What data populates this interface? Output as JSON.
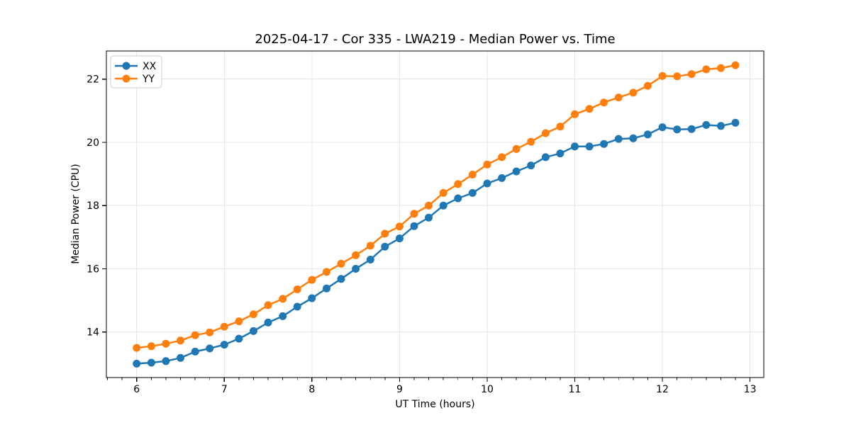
{
  "figure": {
    "kind": "matplotlib-line-chart"
  },
  "chart_data": {
    "type": "line",
    "title": "2025-04-17 - Cor 335 - LWA219 - Median Power vs. Time",
    "xlabel": "UT Time (hours)",
    "ylabel": "Median Power (CPU)",
    "x": [
      6.0,
      6.167,
      6.333,
      6.5,
      6.667,
      6.833,
      7.0,
      7.167,
      7.333,
      7.5,
      7.667,
      7.833,
      8.0,
      8.167,
      8.333,
      8.5,
      8.667,
      8.833,
      9.0,
      9.167,
      9.333,
      9.5,
      9.667,
      9.833,
      10.0,
      10.167,
      10.333,
      10.5,
      10.667,
      10.833,
      11.0,
      11.167,
      11.333,
      11.5,
      11.667,
      11.833,
      12.0,
      12.167,
      12.333,
      12.5,
      12.667,
      12.833
    ],
    "series": [
      {
        "name": "XX",
        "color": "#1f77b4",
        "values": [
          13.0,
          13.03,
          13.08,
          13.18,
          13.38,
          13.48,
          13.6,
          13.79,
          14.03,
          14.3,
          14.5,
          14.8,
          15.07,
          15.38,
          15.68,
          16.0,
          16.29,
          16.7,
          16.96,
          17.35,
          17.62,
          18.0,
          18.23,
          18.4,
          18.7,
          18.87,
          19.08,
          19.27,
          19.53,
          19.65,
          19.87,
          19.87,
          19.95,
          20.11,
          20.13,
          20.25,
          20.48,
          20.41,
          20.42,
          20.55,
          20.52,
          20.62
        ]
      },
      {
        "name": "YY",
        "color": "#ff7f0e",
        "values": [
          13.5,
          13.55,
          13.63,
          13.73,
          13.9,
          13.99,
          14.17,
          14.34,
          14.56,
          14.85,
          15.05,
          15.35,
          15.65,
          15.9,
          16.16,
          16.43,
          16.73,
          17.11,
          17.34,
          17.74,
          18.0,
          18.4,
          18.68,
          18.98,
          19.3,
          19.53,
          19.79,
          20.02,
          20.29,
          20.5,
          20.89,
          21.06,
          21.26,
          21.42,
          21.57,
          21.79,
          22.1,
          22.09,
          22.16,
          22.31,
          22.35,
          22.44
        ]
      }
    ],
    "x_ticks": [
      6,
      7,
      8,
      9,
      10,
      11,
      12,
      13
    ],
    "y_ticks": [
      14,
      16,
      18,
      20,
      22
    ],
    "x_minor_step": 0.166667,
    "xlim": [
      5.654,
      13.157
    ],
    "ylim": [
      12.56,
      22.89
    ],
    "grid": true,
    "grid_color": "#e5e5e5",
    "legend_position": "upper-left",
    "marker": "o"
  }
}
